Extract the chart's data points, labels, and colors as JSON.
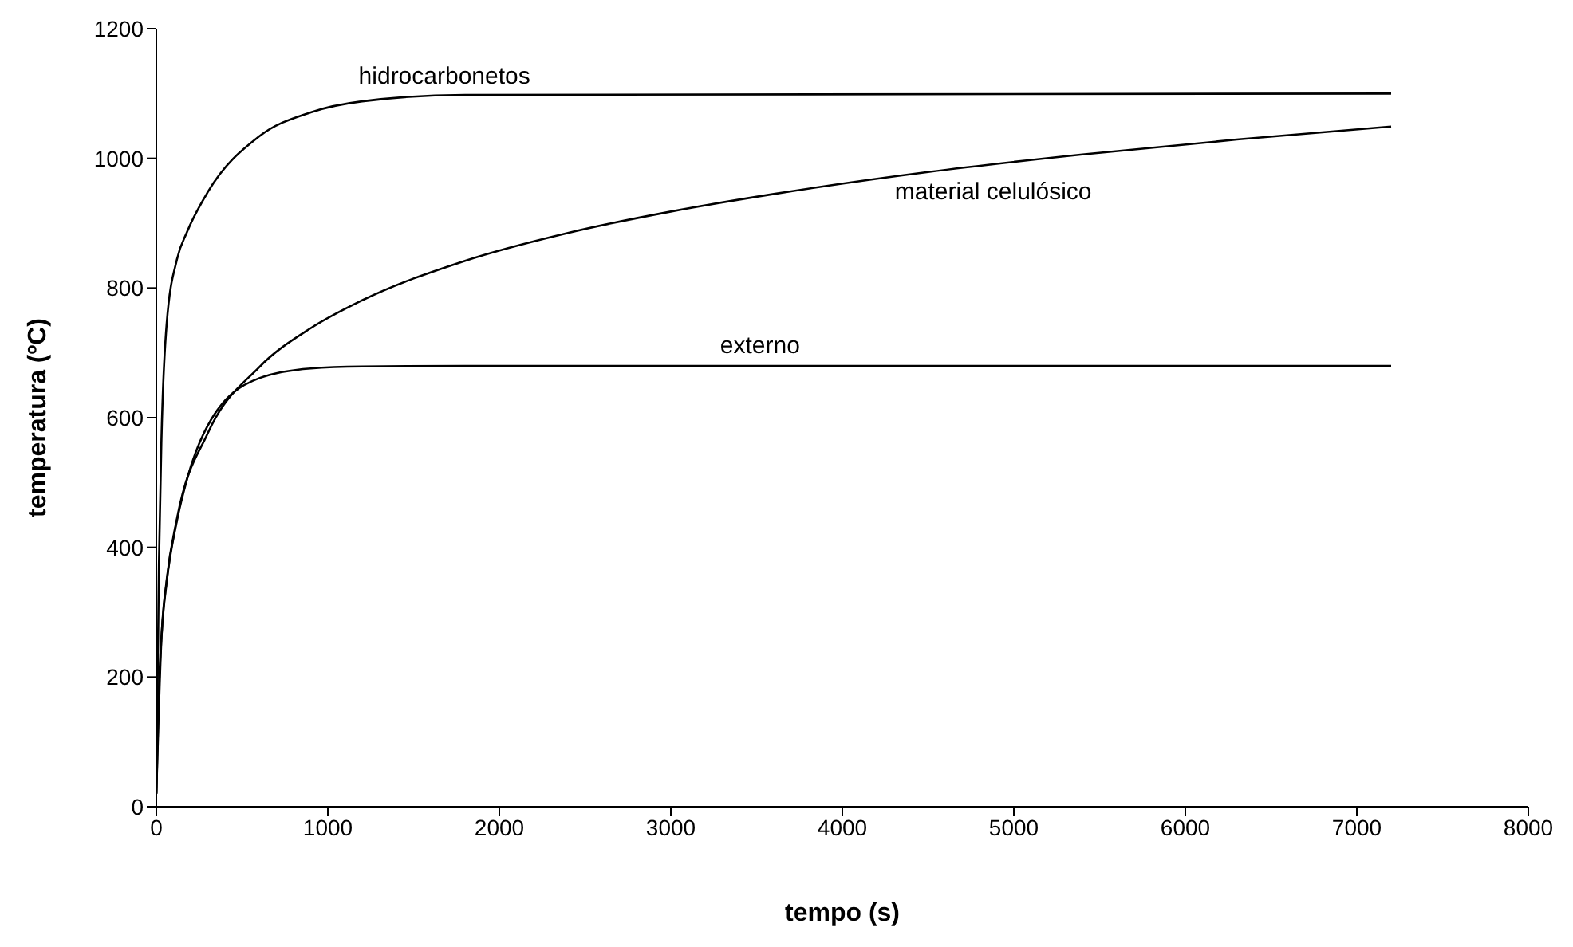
{
  "chart_data": {
    "type": "line",
    "xlabel": "tempo (s)",
    "ylabel": "temperatura (ºC)",
    "xlim": [
      0,
      8000
    ],
    "xticks": [
      0,
      1000,
      2000,
      3000,
      4000,
      5000,
      6000,
      7000,
      8000
    ],
    "ylim": [
      0,
      1200
    ],
    "yticks": [
      0,
      200,
      400,
      600,
      800,
      1000,
      1200
    ],
    "grid": false,
    "legend": false,
    "marker": "none",
    "line_style": "solid",
    "series": [
      {
        "name": "hidrocarbonetos",
        "color": "#000000",
        "x": [
          0,
          15,
          30,
          60,
          120,
          180,
          300,
          600,
          900,
          1200,
          1800,
          7200
        ],
        "values": [
          20,
          373,
          569,
          744,
          844,
          887,
          948,
          1034,
          1071,
          1088,
          1098,
          1100
        ]
      },
      {
        "name": "material celulósico",
        "color": "#000000",
        "x": [
          0,
          30,
          60,
          120,
          300,
          600,
          900,
          1200,
          1800,
          2400,
          3000,
          3600,
          4500,
          5400,
          6300,
          7200
        ],
        "values": [
          20,
          261,
          349,
          444,
          576,
          678,
          738,
          781,
          842,
          885,
          918,
          945,
          979,
          1006,
          1029,
          1049
        ]
      },
      {
        "name": "externo",
        "color": "#000000",
        "x": [
          0,
          15,
          30,
          60,
          120,
          180,
          300,
          600,
          900,
          1200,
          1800,
          7200
        ],
        "values": [
          20,
          182,
          263,
          346,
          441,
          506,
          588,
          661,
          676,
          679,
          680,
          680
        ]
      }
    ]
  }
}
